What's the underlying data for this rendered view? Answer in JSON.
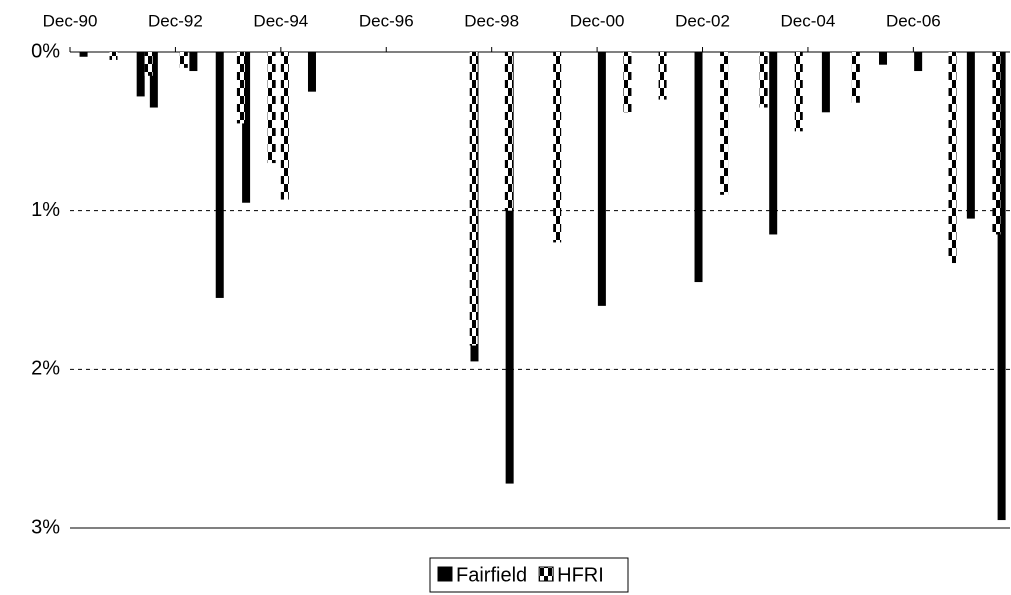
{
  "chart_data": {
    "type": "bar",
    "orientation": "inverted",
    "x": [
      4,
      9,
      17,
      20,
      25,
      29,
      35,
      38,
      41,
      45,
      48,
      56,
      91,
      93,
      99,
      101,
      110,
      122,
      126,
      134,
      144,
      148,
      157,
      161,
      165,
      173,
      178,
      186,
      194,
      200,
      206,
      210,
      213
    ],
    "series": [
      {
        "name": "Fairfield",
        "color": "#000000",
        "values": [
          0.03,
          0,
          0.28,
          0.35,
          0,
          0.12,
          1.55,
          0,
          0.95,
          0,
          0,
          0.25,
          0,
          1.95,
          0,
          2.72,
          0,
          1.6,
          0,
          0,
          1.45,
          0,
          0,
          1.15,
          0,
          0.38,
          0,
          0.08,
          0.12,
          0,
          1.05,
          0,
          2.95
        ]
      },
      {
        "name": "HFRI",
        "color": "#000000",
        "pattern": "checker",
        "values": [
          0,
          0.05,
          0.15,
          0,
          0.1,
          0,
          0,
          0.45,
          0,
          0.7,
          0.93,
          0,
          1.85,
          0,
          1.0,
          0,
          1.2,
          0,
          0.38,
          0.3,
          0,
          0.9,
          0.35,
          0,
          0.5,
          0,
          0.32,
          0,
          0,
          1.33,
          0,
          1.15,
          0
        ]
      }
    ],
    "xlim": [
      0,
      214
    ],
    "xticks": [
      {
        "value": 0,
        "label": "Dec-90"
      },
      {
        "value": 24,
        "label": "Dec-92"
      },
      {
        "value": 48,
        "label": "Dec-94"
      },
      {
        "value": 72,
        "label": "Dec-96"
      },
      {
        "value": 96,
        "label": "Dec-98"
      },
      {
        "value": 120,
        "label": "Dec-00"
      },
      {
        "value": 144,
        "label": "Dec-02"
      },
      {
        "value": 168,
        "label": "Dec-04"
      },
      {
        "value": 192,
        "label": "Dec-06"
      }
    ],
    "ylim": [
      0,
      3
    ],
    "yticks": [
      {
        "value": 0,
        "label": "0%"
      },
      {
        "value": 1,
        "label": "1%"
      },
      {
        "value": 2,
        "label": "2%"
      },
      {
        "value": 3,
        "label": "3%"
      }
    ],
    "grid": true,
    "legend": "bottom"
  }
}
